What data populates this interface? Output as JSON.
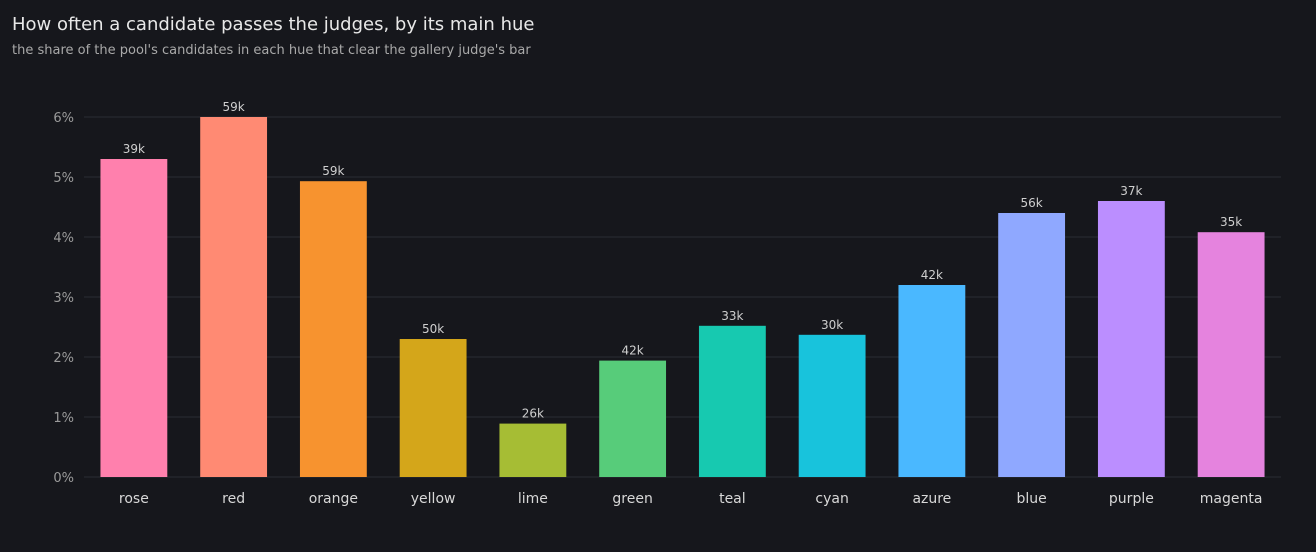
{
  "chart_data": {
    "type": "bar",
    "title": "How often a candidate passes the judges, by its main hue",
    "subtitle": "the share of the pool's candidates in each hue that clear the gallery judge's bar",
    "xlabel": "",
    "ylabel": "",
    "ylim": [
      0,
      6
    ],
    "y_ticks": [
      "0%",
      "1%",
      "2%",
      "3%",
      "4%",
      "5%",
      "6%"
    ],
    "grid": true,
    "categories": [
      "rose",
      "red",
      "orange",
      "yellow",
      "lime",
      "green",
      "teal",
      "cyan",
      "azure",
      "blue",
      "purple",
      "magenta"
    ],
    "values": [
      5.3,
      6.0,
      4.93,
      2.3,
      0.89,
      1.94,
      2.52,
      2.37,
      3.2,
      4.4,
      4.6,
      4.08
    ],
    "bar_labels": [
      "39k",
      "59k",
      "59k",
      "50k",
      "26k",
      "42k",
      "33k",
      "30k",
      "42k",
      "56k",
      "37k",
      "35k"
    ],
    "colors": [
      "#ff80ad",
      "#ff8a73",
      "#f7932f",
      "#d4a61a",
      "#a6bd34",
      "#57cc7a",
      "#17c9b0",
      "#18c3dc",
      "#4ab8ff",
      "#8fa8ff",
      "#bb8eff",
      "#e583de"
    ]
  }
}
